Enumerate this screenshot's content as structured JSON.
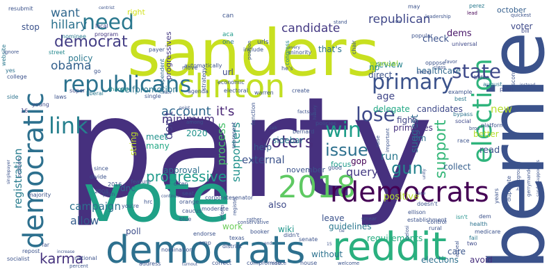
{
  "cloud": {
    "words": [
      {
        "text": "party",
        "color": "#46307e"
      },
      {
        "text": "bernie",
        "color": "#3b528b"
      },
      {
        "text": "sanders",
        "color": "#c8e020"
      },
      {
        "text": "vote",
        "color": "#1fa187"
      },
      {
        "text": "democrats",
        "color": "#2d708e"
      },
      {
        "text": "reddit",
        "color": "#2ab07f"
      },
      {
        "text": "election",
        "color": "#2fb47c"
      },
      {
        "text": "clinton",
        "color": "#c2df23"
      },
      {
        "text": "democratic",
        "color": "#2d708e"
      },
      {
        "text": "republicans",
        "color": "#2c728e"
      },
      {
        "text": "2018",
        "color": "#5ec962"
      },
      {
        "text": "rdemocrats",
        "color": "#440154"
      },
      {
        "text": "link",
        "color": "#27808e"
      },
      {
        "text": "primary",
        "color": "#3b528b"
      },
      {
        "text": "state",
        "color": "#3e4989"
      },
      {
        "text": "need",
        "color": "#2a788e"
      },
      {
        "text": "democrat",
        "color": "#433d84"
      },
      {
        "text": "support",
        "color": "#35b779"
      },
      {
        "text": "win",
        "color": "#1f9e89"
      },
      {
        "text": "issue",
        "color": "#2d708e"
      },
      {
        "text": "lose",
        "color": "#3e4989"
      },
      {
        "text": "voters",
        "color": "#472d7b"
      },
      {
        "text": "gun",
        "color": "#25848e"
      },
      {
        "text": "karma",
        "color": "#46337e"
      },
      {
        "text": "progressive",
        "color": "#1f9a8a"
      },
      {
        "text": "account",
        "color": "#31688e"
      },
      {
        "text": "it's",
        "color": "#482475"
      },
      {
        "text": "candidate",
        "color": "#443983"
      },
      {
        "text": "republican",
        "color": "#3f4788"
      },
      {
        "text": "hillary",
        "color": "#2c728e"
      },
      {
        "text": "want",
        "color": "#31688e"
      },
      {
        "text": "obama",
        "color": "#34618d"
      },
      {
        "text": "process",
        "color": "#4ac16d"
      },
      {
        "text": "supporters",
        "color": "#21918c"
      },
      {
        "text": "minimum",
        "color": "#46327e"
      },
      {
        "text": "external",
        "color": "#3b528b"
      },
      {
        "text": "registration",
        "color": "#287c8e"
      },
      {
        "text": "campaign",
        "color": "#2c718e"
      },
      {
        "text": "allow",
        "color": "#365d8d"
      },
      {
        "text": "query",
        "color": "#443b84"
      },
      {
        "text": "suggest",
        "color": "#31688e"
      },
      {
        "text": "also",
        "color": "#3e4a89"
      },
      {
        "text": "requirements",
        "color": "#27ad81"
      },
      {
        "text": "don't",
        "color": "#433e85"
      },
      {
        "text": "age",
        "color": "#404688"
      },
      {
        "text": "new",
        "color": "#b5de2b"
      },
      {
        "text": "run",
        "color": "#2a788e"
      },
      {
        "text": "dems",
        "color": "#481668"
      },
      {
        "text": "check",
        "color": "#3b528b"
      },
      {
        "text": "voter",
        "color": "#3e4a89"
      },
      {
        "text": "stop",
        "color": "#3b528b"
      },
      {
        "text": "meet",
        "color": "#21918c"
      },
      {
        "text": "many",
        "color": "#22a884"
      },
      {
        "text": "string",
        "color": "#bddf26"
      },
      {
        "text": "approval",
        "color": "#2e6f8e"
      },
      {
        "text": "dnc",
        "color": "#31688e"
      },
      {
        "text": "poll",
        "color": "#3d4e8a"
      },
      {
        "text": "positive",
        "color": "#b5de2b"
      },
      {
        "text": "wiki",
        "color": "#1f968b"
      },
      {
        "text": "work",
        "color": "#6ccd5a"
      },
      {
        "text": "guidelines",
        "color": "#2a778e"
      },
      {
        "text": "leave",
        "color": "#3b528b"
      },
      {
        "text": "without",
        "color": "#2c728e"
      },
      {
        "text": "elections",
        "color": "#2d708e"
      },
      {
        "text": "avoid",
        "color": "#472f7d"
      },
      {
        "text": "care",
        "color": "#39568c"
      },
      {
        "text": "primaries",
        "color": "#46307e"
      },
      {
        "text": "fight",
        "color": "#414487"
      },
      {
        "text": "review",
        "color": "#25838e"
      },
      {
        "text": "direct",
        "color": "#3b528b"
      },
      {
        "text": "np",
        "color": "#23888e"
      },
      {
        "text": "healthcare",
        "color": "#31688e"
      },
      {
        "text": "delegate",
        "color": "#22a884"
      },
      {
        "text": "candidates",
        "color": "#3e4989"
      },
      {
        "text": "better",
        "color": "#b5de2b"
      },
      {
        "text": "read",
        "color": "#3b528b"
      },
      {
        "text": "collect",
        "color": "#355f8d"
      },
      {
        "text": "manual",
        "color": "#9fda3a"
      },
      {
        "text": "that's",
        "color": "#2c728e"
      },
      {
        "text": "url",
        "color": "#3e4989"
      },
      {
        "text": "policy",
        "color": "#2a778e"
      },
      {
        "text": "selfpromotion",
        "color": "#2a768e"
      },
      {
        "text": "progressives",
        "color": "#443983"
      },
      {
        "text": "2020",
        "color": "#20928c"
      },
      {
        "text": "help",
        "color": "#375b8d"
      },
      {
        "text": "sidebar",
        "color": "#2a788e"
      },
      {
        "text": "focus",
        "color": "#1e9b8a"
      },
      {
        "text": "gop",
        "color": "#440154"
      },
      {
        "text": "i'm",
        "color": "#2e6e8e"
      },
      {
        "text": "november",
        "color": "#3b528b"
      },
      {
        "text": "october",
        "color": "#355f8d"
      },
      {
        "text": "right",
        "color": "#d2e21b"
      },
      {
        "text": "independent",
        "color": "#31688e"
      },
      {
        "text": "local",
        "color": "#414487"
      },
      {
        "text": "program",
        "color": "#453781"
      },
      {
        "text": "nominee",
        "color": "#29798e"
      },
      {
        "text": "aca",
        "color": "#1f9a8a"
      },
      {
        "text": "one",
        "color": "#29798e"
      },
      {
        "text": "urls",
        "color": "#3b528b"
      },
      {
        "text": "congress",
        "color": "#24868e"
      },
      {
        "text": "position",
        "color": "#3b528b"
      },
      {
        "text": "website",
        "color": "#2a788e"
      },
      {
        "text": "street",
        "color": "#23888e"
      },
      {
        "text": "yes",
        "color": "#2c728e"
      },
      {
        "text": "college",
        "color": "#3b528b"
      },
      {
        "text": "side",
        "color": "#2c728e"
      },
      {
        "text": "super",
        "color": "#3e4a89"
      },
      {
        "text": "liberal",
        "color": "#2a788e"
      },
      {
        "text": "change",
        "color": "#21918c"
      },
      {
        "text": "laws",
        "color": "#3b528b"
      },
      {
        "text": "young",
        "color": "#3e4a89"
      },
      {
        "text": "16",
        "color": "#433e85"
      },
      {
        "text": "resubmit",
        "color": "#3b528b"
      },
      {
        "text": "centrist",
        "color": "#3b528b"
      },
      {
        "text": "leadership",
        "color": "#3b528b"
      },
      {
        "text": "perez",
        "color": "#29798e"
      },
      {
        "text": "lead",
        "color": "#440154"
      },
      {
        "text": "quickest",
        "color": "#3b528b"
      },
      {
        "text": "bill",
        "color": "#3e4a89"
      },
      {
        "text": "popular",
        "color": "#3b528b"
      },
      {
        "text": "universal",
        "color": "#3e4989"
      },
      {
        "text": "wisconsin",
        "color": "#3b528b"
      },
      {
        "text": "biden",
        "color": "#3e4a89"
      },
      {
        "text": "august",
        "color": "#2a788e"
      },
      {
        "text": "push",
        "color": "#3e4a89"
      },
      {
        "text": "example",
        "color": "#3b528b"
      },
      {
        "text": "best",
        "color": "#2a788e"
      },
      {
        "text": "bypass",
        "color": "#2c728e"
      },
      {
        "text": "social",
        "color": "#3e4989"
      },
      {
        "text": "platform",
        "color": "#3b528b"
      },
      {
        "text": "bros",
        "color": "#3b528b"
      },
      {
        "text": "race",
        "color": "#3b528b"
      },
      {
        "text": "years",
        "color": "#3b528b"
      },
      {
        "text": "health",
        "color": "#2c728e"
      },
      {
        "text": "medicare",
        "color": "#3b528b"
      },
      {
        "text": "isn't",
        "color": "#21918c"
      },
      {
        "text": "dem",
        "color": "#3b528b"
      },
      {
        "text": "fail",
        "color": "#2a788e"
      },
      {
        "text": "two",
        "color": "#3e4a89"
      },
      {
        "text": "appeal",
        "color": "#3b528b"
      },
      {
        "text": "doesn't",
        "color": "#3b528b"
      },
      {
        "text": "control",
        "color": "#3b528b"
      },
      {
        "text": "rural",
        "color": "#3b528b"
      },
      {
        "text": "ellison",
        "color": "#3b528b"
      },
      {
        "text": "smear",
        "color": "#3b528b"
      },
      {
        "text": "pelosi",
        "color": "#3b528b"
      },
      {
        "text": "senate",
        "color": "#3b528b"
      },
      {
        "text": "didn't",
        "color": "#3b528b"
      },
      {
        "text": "booker",
        "color": "#3b528b"
      },
      {
        "text": "texas",
        "color": "#3b528b"
      },
      {
        "text": "district",
        "color": "#3b528b"
      },
      {
        "text": "nomination",
        "color": "#3b528b"
      },
      {
        "text": "amp",
        "color": "#3b528b"
      },
      {
        "text": "endorse",
        "color": "#3b528b"
      },
      {
        "text": "blue",
        "color": "#3b528b"
      },
      {
        "text": "caucus",
        "color": "#3b528b"
      },
      {
        "text": "moderate",
        "color": "#3b528b"
      },
      {
        "text": "corporatesenator",
        "color": "#3b528b"
      },
      {
        "text": "reform",
        "color": "#3b528b"
      },
      {
        "text": "often",
        "color": "#3b528b"
      },
      {
        "text": "hrc",
        "color": "#3b528b"
      },
      {
        "text": "you're",
        "color": "#3b528b"
      },
      {
        "text": "feature",
        "color": "#3b528b"
      },
      {
        "text": "orange",
        "color": "#3b528b"
      },
      {
        "text": "seat",
        "color": "#3b528b"
      },
      {
        "text": "plan",
        "color": "#3b528b"
      },
      {
        "text": "majority",
        "color": "#3b528b"
      },
      {
        "text": "problem",
        "color": "#3b528b"
      },
      {
        "text": "since",
        "color": "#3b528b"
      },
      {
        "text": "divide",
        "color": "#3b528b"
      },
      {
        "text": "2016",
        "color": "#3b528b"
      },
      {
        "text": "2008",
        "color": "#3b528b"
      },
      {
        "text": "far",
        "color": "#3b528b"
      },
      {
        "text": "repost",
        "color": "#3b528b"
      },
      {
        "text": "socialist",
        "color": "#3b528b"
      },
      {
        "text": "national",
        "color": "#3b528b"
      },
      {
        "text": "address",
        "color": "#3b528b"
      },
      {
        "text": "turnout",
        "color": "#3b528b"
      },
      {
        "text": "correct",
        "color": "#3b528b"
      },
      {
        "text": "compromise",
        "color": "#3b528b"
      },
      {
        "text": "reduce",
        "color": "#3b528b"
      },
      {
        "text": "house",
        "color": "#3b528b"
      },
      {
        "text": "welcome",
        "color": "#3b528b"
      },
      {
        "text": "rather",
        "color": "#3b528b"
      },
      {
        "text": "establishment",
        "color": "#3b528b"
      },
      {
        "text": "represent",
        "color": "#3b528b"
      },
      {
        "text": "function",
        "color": "#3b528b"
      },
      {
        "text": "strategy",
        "color": "#3b528b"
      },
      {
        "text": "payer",
        "color": "#3b528b"
      },
      {
        "text": "include",
        "color": "#3b528b"
      },
      {
        "text": "automatically",
        "color": "#3b528b"
      },
      {
        "text": "he's",
        "color": "#3b528b"
      },
      {
        "text": "economic",
        "color": "#3b528b"
      },
      {
        "text": "electoral",
        "color": "#3b528b"
      },
      {
        "text": "warren",
        "color": "#3b528b"
      },
      {
        "text": "create",
        "color": "#3b528b"
      },
      {
        "text": "agenda",
        "color": "#3b528b"
      },
      {
        "text": "single",
        "color": "#3b528b"
      },
      {
        "text": "move",
        "color": "#3b528b"
      },
      {
        "text": "point",
        "color": "#3b528b"
      },
      {
        "text": "among",
        "color": "#3b528b"
      },
      {
        "text": "go",
        "color": "#3b528b"
      },
      {
        "text": "minority",
        "color": "#3b528b"
      },
      {
        "text": "class",
        "color": "#3b528b"
      },
      {
        "text": "good",
        "color": "#3b528b"
      },
      {
        "text": "facts",
        "color": "#3b528b"
      },
      {
        "text": "policies",
        "color": "#3b528b"
      },
      {
        "text": "bernard",
        "color": "#3b528b"
      },
      {
        "text": "talk",
        "color": "#3b528b"
      },
      {
        "text": "history",
        "color": "#3b528b"
      },
      {
        "text": "raise",
        "color": "#3b528b"
      },
      {
        "text": "important",
        "color": "#3b528b"
      },
      {
        "text": "background",
        "color": "#3b528b"
      },
      {
        "text": "gerrymander",
        "color": "#3b528b"
      },
      {
        "text": "sandersupporters",
        "color": "#3b528b"
      },
      {
        "text": "duplicate",
        "color": "#3b528b"
      },
      {
        "text": "swing",
        "color": "#3b528b"
      },
      {
        "text": "oppose",
        "color": "#3b528b"
      },
      {
        "text": "favor",
        "color": "#3b528b"
      },
      {
        "text": "chair",
        "color": "#3b528b"
      },
      {
        "text": "stand",
        "color": "#3b528b"
      },
      {
        "text": "may",
        "color": "#3b528b"
      },
      {
        "text": "can",
        "color": "#3b528b"
      },
      {
        "text": "every",
        "color": "#3b528b"
      },
      {
        "text": "unity",
        "color": "#3b528b"
      },
      {
        "text": "singlepayer",
        "color": "#3b528b"
      },
      {
        "text": "increase",
        "color": "#3b528b"
      },
      {
        "text": "percent",
        "color": "#3b528b"
      },
      {
        "text": "ignore",
        "color": "#3b528b"
      },
      {
        "text": "fact",
        "color": "#3b528b"
      },
      {
        "text": "instead",
        "color": "#3b528b"
      },
      {
        "text": "continue",
        "color": "#3b528b"
      },
      {
        "text": "register",
        "color": "#3b528b"
      },
      {
        "text": "conservative",
        "color": "#3b528b"
      },
      {
        "text": "nm",
        "color": "#3b528b"
      },
      {
        "text": "tie",
        "color": "#3b528b"
      },
      {
        "text": "15",
        "color": "#3b528b"
      },
      {
        "text": "tell",
        "color": "#3b528b"
      },
      {
        "text": "end",
        "color": "#3b528b"
      },
      {
        "text": "base",
        "color": "#3b528b"
      }
    ]
  }
}
